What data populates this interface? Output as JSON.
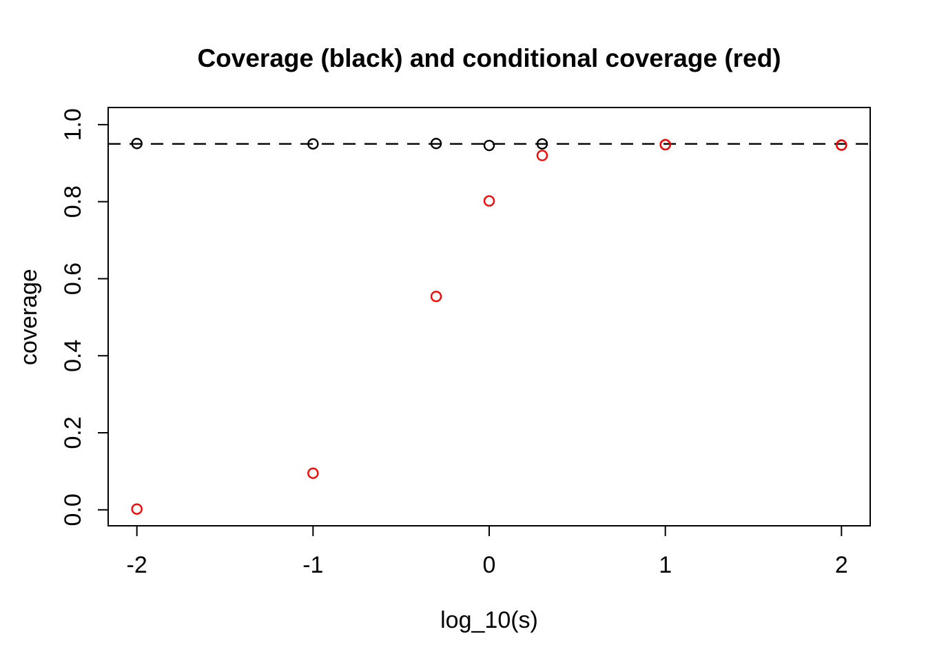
{
  "figure": {
    "background": "#ffffff",
    "foreground": "#000000"
  },
  "chart_data": {
    "type": "scatter",
    "title": "Coverage (black) and conditional coverage (red)",
    "xlabel": "log_10(s)",
    "ylabel": "coverage",
    "xlim": [
      -2.163,
      2.163
    ],
    "ylim": [
      -0.0415,
      1.0445
    ],
    "x_ticks": [
      -2,
      -1,
      0,
      1,
      2
    ],
    "x_tick_labels": [
      "-2",
      "-1",
      "0",
      "1",
      "2"
    ],
    "y_ticks": [
      0.0,
      0.2,
      0.4,
      0.6,
      0.8,
      1.0
    ],
    "y_tick_labels": [
      "0.0",
      "0.2",
      "0.4",
      "0.6",
      "0.8",
      "1.0"
    ],
    "grid": false,
    "legend": "none (colors described in title)",
    "reference_line": {
      "y": 0.95,
      "style": "dashed",
      "color": "#000000"
    },
    "marker": {
      "shape": "open-circle",
      "radius": 7,
      "stroke_width": 2.4
    },
    "series": [
      {
        "name": "coverage",
        "color": "#000000",
        "x": [
          -2,
          -1,
          -0.301,
          0,
          0.301,
          1,
          2
        ],
        "y": [
          0.951,
          0.95,
          0.951,
          0.946,
          0.95,
          0.948,
          0.947
        ]
      },
      {
        "name": "conditional coverage",
        "color": "#FF0000",
        "x": [
          -2,
          -1,
          -0.301,
          0,
          0.301,
          1,
          2
        ],
        "y": [
          0.002,
          0.095,
          0.554,
          0.802,
          0.92,
          0.948,
          0.947
        ]
      }
    ]
  }
}
